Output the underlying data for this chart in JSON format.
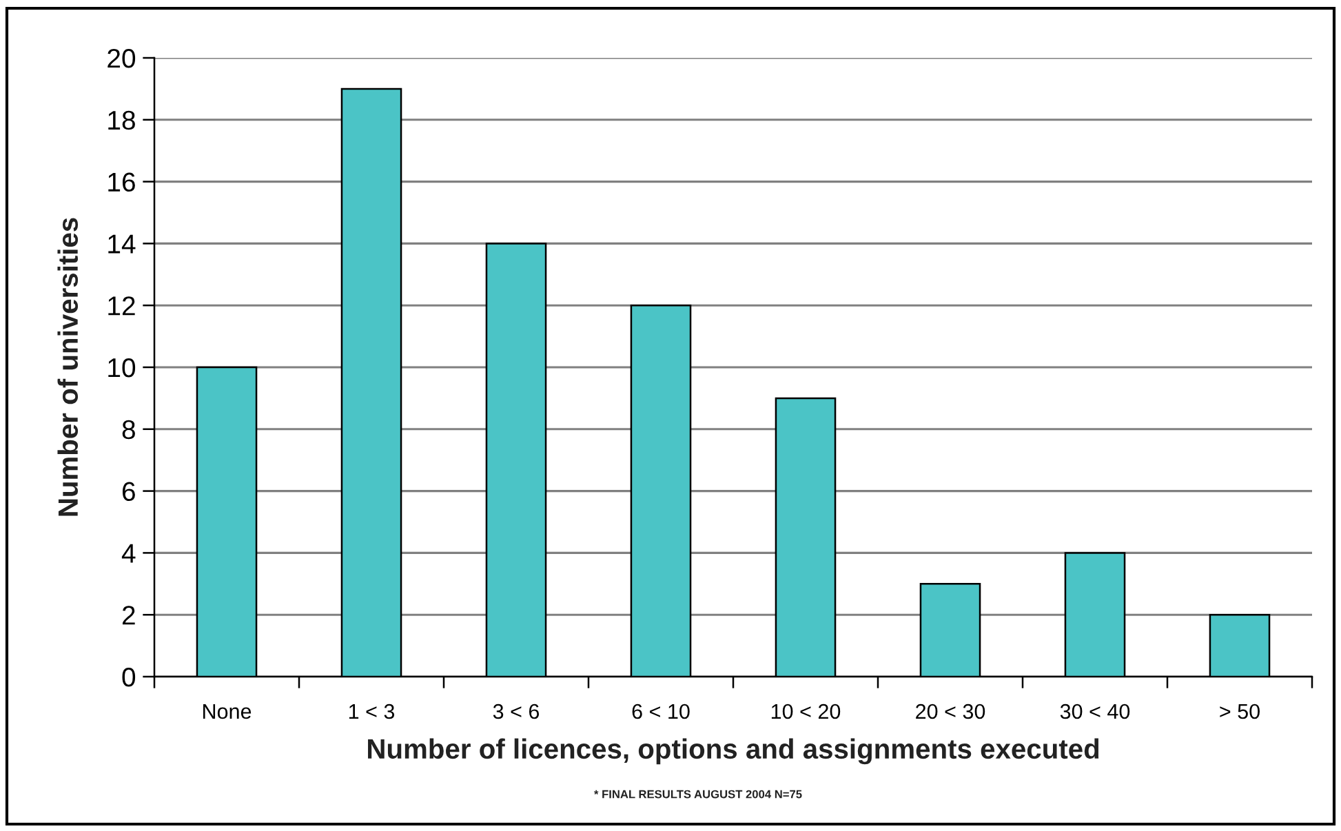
{
  "chart_data": {
    "type": "bar",
    "categories": [
      "None",
      "1 < 3",
      "3 < 6",
      "6 < 10",
      "10 < 20",
      "20 < 30",
      "30 < 40",
      "> 50"
    ],
    "values": [
      10,
      19,
      14,
      12,
      9,
      3,
      4,
      2
    ],
    "color": "#4bc4c6",
    "xlabel": "Number of licences, options and assignments executed",
    "ylabel": "Number of universities",
    "annotations": [
      "* FINAL RESULTS AUGUST 2004 N=75"
    ],
    "ylim": [
      0,
      20
    ],
    "yticks": [
      0,
      2,
      4,
      6,
      8,
      10,
      12,
      14,
      16,
      18,
      20
    ],
    "grid": "y",
    "legend": false
  }
}
